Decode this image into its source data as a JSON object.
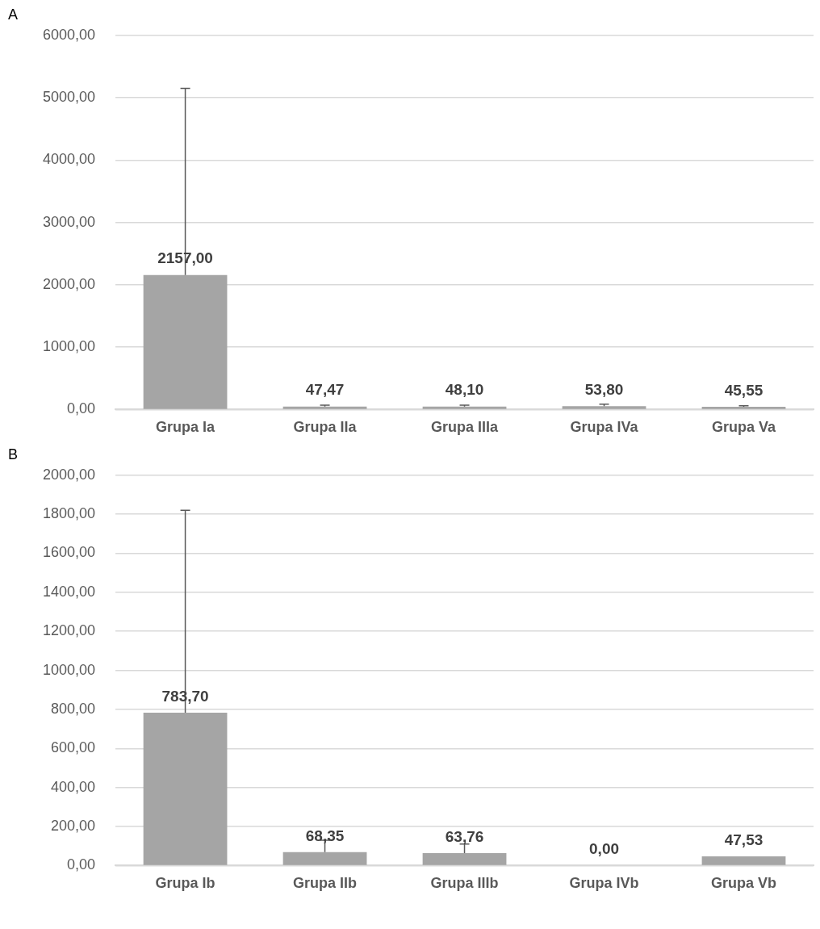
{
  "chart_data": [
    {
      "type": "bar",
      "title": "A",
      "categories": [
        "Grupa Ia",
        "Grupa IIa",
        "Grupa IIIa",
        "Grupa IVa",
        "Grupa Va"
      ],
      "values": [
        2157.0,
        47.47,
        48.1,
        53.8,
        45.55
      ],
      "color": "#a5a5a5",
      "errors": [
        [
          2157,
          5150
        ],
        [
          47.47,
          70
        ],
        [
          48.1,
          70
        ],
        [
          53.8,
          85
        ],
        [
          45.55,
          60
        ]
      ],
      "ylim": [
        0,
        6000
      ],
      "yticks": [
        {
          "value": 0,
          "label": "0,00"
        },
        {
          "value": 1000,
          "label": "1000,00"
        },
        {
          "value": 2000,
          "label": "2000,00"
        },
        {
          "value": 3000,
          "label": "3000,00"
        },
        {
          "value": 4000,
          "label": "4000,00"
        },
        {
          "value": 5000,
          "label": "5000,00"
        },
        {
          "value": 6000,
          "label": "6000,00"
        }
      ],
      "grid": "y",
      "data_labels": true,
      "value_labels": [
        "2157,00",
        "47,47",
        "48,10",
        "53,80",
        "45,55"
      ]
    },
    {
      "type": "bar",
      "title": "B",
      "categories": [
        "Grupa Ib",
        "Grupa IIb",
        "Grupa IIIb",
        "Grupa IVb",
        "Grupa Vb"
      ],
      "values": [
        783.7,
        68.35,
        63.76,
        0.0,
        47.53
      ],
      "color": "#a5a5a5",
      "errors": [
        [
          783.7,
          1820
        ],
        [
          68.35,
          130
        ],
        [
          63.76,
          110
        ],
        null,
        null
      ],
      "ylim": [
        0,
        2000
      ],
      "yticks": [
        {
          "value": 0,
          "label": "0,00"
        },
        {
          "value": 200,
          "label": "200,00"
        },
        {
          "value": 400,
          "label": "400,00"
        },
        {
          "value": 600,
          "label": "600,00"
        },
        {
          "value": 800,
          "label": "800,00"
        },
        {
          "value": 1000,
          "label": "1000,00"
        },
        {
          "value": 1200,
          "label": "1200,00"
        },
        {
          "value": 1400,
          "label": "1400,00"
        },
        {
          "value": 1600,
          "label": "1600,00"
        },
        {
          "value": 1800,
          "label": "1800,00"
        },
        {
          "value": 2000,
          "label": "2000,00"
        }
      ],
      "grid": "y",
      "data_labels": true,
      "value_labels": [
        "783,70",
        "68,35",
        "63,76",
        "0,00",
        "47,53"
      ]
    }
  ]
}
